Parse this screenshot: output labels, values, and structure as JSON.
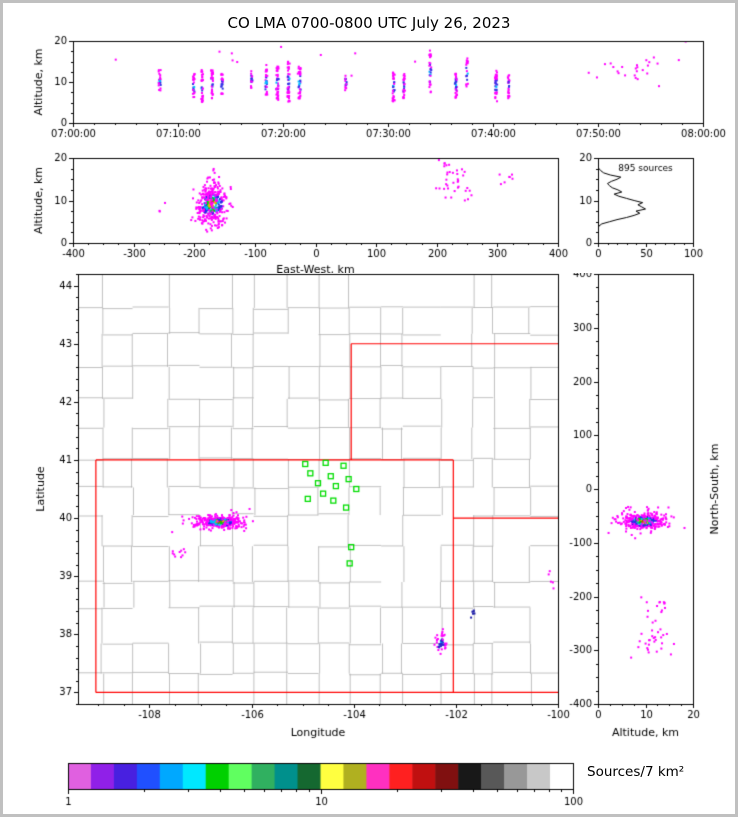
{
  "title": "CO LMA 0700-0800 UTC July 26, 2023",
  "palettes": {
    "magenta": [
      "#ff00ff"
    ],
    "burst": [
      "#ff00ff",
      "#ff00ff",
      "#3333e6",
      "#00bfff"
    ],
    "storm": [
      "#ff00ff",
      "#ff00ff",
      "#2a2ae6",
      "#00bfff",
      "#00d000",
      "#ffa500",
      "#ff2200",
      "#101010"
    ],
    "blueclump": [
      "#ff00ff",
      "#2a2ad0",
      "#2a2ad0",
      "#00aaff"
    ],
    "darkblue": [
      "#2222aa"
    ]
  },
  "map_style": {
    "county_color": "#b0b0b0",
    "border_color": "#ff0000",
    "station_color": "#00dd00"
  },
  "colorbar": {
    "label": "Sources/7 km²",
    "scale": "log",
    "range": [
      1,
      100
    ],
    "tick_values": [
      1,
      10,
      100
    ],
    "tick_labels": [
      "1",
      "10",
      "100"
    ],
    "colors": [
      "#e060e0",
      "#9020e8",
      "#4820e0",
      "#2050ff",
      "#00a8ff",
      "#00e8ff",
      "#00d000",
      "#60ff60",
      "#30b060",
      "#00908c",
      "#156830",
      "#ffff40",
      "#b0b020",
      "#ff30c0",
      "#ff2020",
      "#c01010",
      "#801010",
      "#181818",
      "#585858",
      "#989898",
      "#c8c8c8",
      "#ffffff"
    ]
  },
  "chart_data": [
    {
      "id": "time_height",
      "type": "scatter",
      "xlabel": "",
      "ylabel": "Altitude, km",
      "xlim": [
        0,
        3600
      ],
      "ylim": [
        0,
        20
      ],
      "xticks": [
        {
          "v": 0,
          "l": "07:00:00"
        },
        {
          "v": 600,
          "l": "07:10:00"
        },
        {
          "v": 1200,
          "l": "07:20:00"
        },
        {
          "v": 1800,
          "l": "07:30:00"
        },
        {
          "v": 2400,
          "l": "07:40:00"
        },
        {
          "v": 3000,
          "l": "07:50:00"
        },
        {
          "v": 3600,
          "l": "08:00:00"
        }
      ],
      "yticks": [
        {
          "v": 0,
          "l": "0"
        },
        {
          "v": 10,
          "l": "10"
        },
        {
          "v": 20,
          "l": "20"
        }
      ],
      "xminor": 120,
      "yminor": 2.5,
      "clusters": [
        {
          "kind": "vline",
          "x": 495,
          "jx": 6,
          "y0": 7,
          "y1": 13,
          "n": 22,
          "palette": "burst"
        },
        {
          "kind": "vline",
          "x": 690,
          "jx": 5,
          "y0": 6,
          "y1": 12,
          "n": 24,
          "palette": "burst"
        },
        {
          "kind": "vline",
          "x": 738,
          "jx": 5,
          "y0": 5,
          "y1": 13,
          "n": 30,
          "palette": "burst"
        },
        {
          "kind": "vline",
          "x": 795,
          "jx": 6,
          "y0": 6,
          "y1": 13,
          "n": 30,
          "palette": "burst"
        },
        {
          "kind": "vline",
          "x": 852,
          "jx": 5,
          "y0": 7,
          "y1": 12,
          "n": 22,
          "palette": "burst"
        },
        {
          "kind": "vline",
          "x": 1022,
          "jx": 5,
          "y0": 8,
          "y1": 13,
          "n": 16,
          "palette": "burst"
        },
        {
          "kind": "vline",
          "x": 1105,
          "jx": 6,
          "y0": 6,
          "y1": 13,
          "n": 28,
          "palette": "burst"
        },
        {
          "kind": "vline",
          "x": 1168,
          "jx": 6,
          "y0": 5,
          "y1": 14,
          "n": 40,
          "palette": "burst"
        },
        {
          "kind": "vline",
          "x": 1232,
          "jx": 6,
          "y0": 5,
          "y1": 15,
          "n": 44,
          "palette": "burst"
        },
        {
          "kind": "vline",
          "x": 1295,
          "jx": 6,
          "y0": 6,
          "y1": 14,
          "n": 34,
          "palette": "burst"
        },
        {
          "kind": "vline",
          "x": 1560,
          "jx": 5,
          "y0": 8,
          "y1": 12,
          "n": 14,
          "palette": "burst"
        },
        {
          "kind": "vline",
          "x": 1832,
          "jx": 6,
          "y0": 5,
          "y1": 13,
          "n": 32,
          "palette": "burst"
        },
        {
          "kind": "vline",
          "x": 1892,
          "jx": 5,
          "y0": 6,
          "y1": 12,
          "n": 26,
          "palette": "burst"
        },
        {
          "kind": "vline",
          "x": 2042,
          "jx": 6,
          "y0": 7,
          "y1": 17,
          "n": 28,
          "palette": "burst"
        },
        {
          "kind": "vline",
          "x": 2188,
          "jx": 6,
          "y0": 6,
          "y1": 13,
          "n": 32,
          "palette": "burst"
        },
        {
          "kind": "vline",
          "x": 2252,
          "jx": 5,
          "y0": 8,
          "y1": 16,
          "n": 20,
          "palette": "burst"
        },
        {
          "kind": "vline",
          "x": 2418,
          "jx": 6,
          "y0": 5,
          "y1": 13,
          "n": 36,
          "palette": "burst"
        },
        {
          "kind": "vline",
          "x": 2490,
          "jx": 5,
          "y0": 6,
          "y1": 12,
          "n": 26,
          "palette": "burst"
        },
        {
          "kind": "cloud",
          "cx": 3200,
          "cy": 13,
          "sx": 140,
          "sy": 2.2,
          "n": 26,
          "palette": "magenta"
        },
        {
          "kind": "cloud",
          "cx": 1650,
          "cy": 14.5,
          "sx": 750,
          "sy": 2.0,
          "n": 14,
          "palette": "magenta"
        }
      ]
    },
    {
      "id": "ew_height",
      "type": "scatter",
      "xlabel": "East-West, km",
      "ylabel": "Altitude, km",
      "xlim": [
        -400,
        400
      ],
      "ylim": [
        0,
        20
      ],
      "xticks": [
        {
          "v": -400,
          "l": "-400"
        },
        {
          "v": -300,
          "l": "-300"
        },
        {
          "v": -200,
          "l": "-200"
        },
        {
          "v": -100,
          "l": "-100"
        },
        {
          "v": 0,
          "l": "0"
        },
        {
          "v": 100,
          "l": "100"
        },
        {
          "v": 200,
          "l": "200"
        },
        {
          "v": 300,
          "l": "300"
        },
        {
          "v": 400,
          "l": "400"
        }
      ],
      "yticks": [
        {
          "v": 0,
          "l": "0"
        },
        {
          "v": 10,
          "l": "10"
        },
        {
          "v": 20,
          "l": "20"
        }
      ],
      "xminor": 25,
      "yminor": 2.5,
      "clusters": [
        {
          "kind": "cloud",
          "cx": -170,
          "cy": 9,
          "sx": 13,
          "sy": 2.1,
          "n": 320,
          "palette": "storm"
        },
        {
          "kind": "cloud",
          "cx": -170,
          "cy": 11.5,
          "sx": 9,
          "sy": 2.6,
          "n": 70,
          "palette": "magenta"
        },
        {
          "kind": "cloud",
          "cx": -173,
          "cy": 5.5,
          "sx": 9,
          "sy": 1.1,
          "n": 22,
          "palette": "magenta"
        },
        {
          "kind": "cloud",
          "cx": 228,
          "cy": 15,
          "sx": 16,
          "sy": 2.2,
          "n": 28,
          "palette": "magenta"
        },
        {
          "kind": "cloud",
          "cx": 208,
          "cy": 18.5,
          "sx": 8,
          "sy": 0.8,
          "n": 5,
          "palette": "magenta"
        },
        {
          "kind": "cloud",
          "cx": 312,
          "cy": 14.5,
          "sx": 10,
          "sy": 1.2,
          "n": 7,
          "palette": "magenta"
        },
        {
          "kind": "cloud",
          "cx": 255,
          "cy": 11,
          "sx": 6,
          "sy": 1.0,
          "n": 4,
          "palette": "magenta"
        },
        {
          "kind": "cloud",
          "cx": -258,
          "cy": 9,
          "sx": 3,
          "sy": 0.8,
          "n": 3,
          "palette": "magenta"
        }
      ]
    },
    {
      "id": "alt_histogram",
      "type": "line",
      "annotation": "895 sources",
      "xlabel": "",
      "ylabel": "",
      "xlim": [
        0,
        100
      ],
      "ylim": [
        0,
        20
      ],
      "xticks": [
        {
          "v": 0,
          "l": "0"
        },
        {
          "v": 50,
          "l": "50"
        },
        {
          "v": 100,
          "l": "100"
        }
      ],
      "yticks": [
        {
          "v": 0,
          "l": "0"
        },
        {
          "v": 10,
          "l": "10"
        },
        {
          "v": 20,
          "l": "20"
        }
      ],
      "xminor": 10,
      "yminor": 2.5,
      "profile": [
        [
          3.5,
          0
        ],
        [
          4,
          1
        ],
        [
          4.5,
          4
        ],
        [
          5,
          12
        ],
        [
          5.5,
          20
        ],
        [
          6,
          30
        ],
        [
          6.5,
          38
        ],
        [
          7,
          44
        ],
        [
          7.5,
          40
        ],
        [
          8,
          50
        ],
        [
          8.5,
          46
        ],
        [
          9,
          42
        ],
        [
          9.5,
          47
        ],
        [
          10,
          38
        ],
        [
          10.5,
          30
        ],
        [
          11,
          22
        ],
        [
          11.5,
          17
        ],
        [
          12,
          25
        ],
        [
          12.5,
          21
        ],
        [
          13,
          15
        ],
        [
          13.5,
          12
        ],
        [
          14,
          10
        ],
        [
          14.5,
          14
        ],
        [
          15,
          20
        ],
        [
          15.5,
          24
        ],
        [
          16,
          13
        ],
        [
          16.5,
          6
        ],
        [
          17,
          3
        ],
        [
          17.5,
          1
        ],
        [
          18,
          0
        ]
      ]
    },
    {
      "id": "plan_view",
      "type": "map_scatter",
      "xlabel": "Longitude",
      "ylabel": "Latitude",
      "xlim": [
        -109.4,
        -100.0
      ],
      "ylim": [
        36.8,
        44.2
      ],
      "xticks": [
        {
          "v": -108,
          "l": "-108"
        },
        {
          "v": -106,
          "l": "-106"
        },
        {
          "v": -104,
          "l": "-104"
        },
        {
          "v": -102,
          "l": "-102"
        },
        {
          "v": -100,
          "l": "-100"
        }
      ],
      "yticks": [
        {
          "v": 37,
          "l": "37"
        },
        {
          "v": 38,
          "l": "38"
        },
        {
          "v": 39,
          "l": "39"
        },
        {
          "v": 40,
          "l": "40"
        },
        {
          "v": 41,
          "l": "41"
        },
        {
          "v": 42,
          "l": "42"
        },
        {
          "v": 43,
          "l": "43"
        },
        {
          "v": 44,
          "l": "44"
        }
      ],
      "xminor": 0.5,
      "yminor": 0.2,
      "state_borders": [
        [
          [
            -109.05,
            37
          ],
          [
            -100,
            37
          ]
        ],
        [
          [
            -109.05,
            41
          ],
          [
            -102.05,
            41
          ]
        ],
        [
          [
            -109.05,
            37
          ],
          [
            -109.05,
            41
          ]
        ],
        [
          [
            -102.05,
            37
          ],
          [
            -102.05,
            41
          ]
        ],
        [
          [
            -104.05,
            41
          ],
          [
            -104.05,
            43
          ]
        ],
        [
          [
            -104.05,
            43
          ],
          [
            -100,
            43
          ]
        ],
        [
          [
            -102.05,
            40
          ],
          [
            -100,
            40
          ]
        ]
      ],
      "stations": [
        [
          -104.95,
          40.93
        ],
        [
          -104.55,
          40.95
        ],
        [
          -104.2,
          40.9
        ],
        [
          -104.85,
          40.77
        ],
        [
          -104.45,
          40.72
        ],
        [
          -104.1,
          40.67
        ],
        [
          -104.7,
          40.6
        ],
        [
          -104.35,
          40.55
        ],
        [
          -103.95,
          40.5
        ],
        [
          -104.6,
          40.42
        ],
        [
          -104.9,
          40.33
        ],
        [
          -104.4,
          40.3
        ],
        [
          -104.15,
          40.18
        ],
        [
          -104.05,
          39.5
        ],
        [
          -104.08,
          39.22
        ]
      ],
      "clusters": [
        {
          "kind": "cloud",
          "cx": -106.62,
          "cy": 39.93,
          "sx": 0.2,
          "sy": 0.05,
          "n": 320,
          "palette": "storm"
        },
        {
          "kind": "cloud",
          "cx": -106.6,
          "cy": 39.93,
          "sx": 0.33,
          "sy": 0.1,
          "n": 70,
          "palette": "magenta"
        },
        {
          "kind": "cloud",
          "cx": -107.4,
          "cy": 39.4,
          "sx": 0.12,
          "sy": 0.06,
          "n": 10,
          "palette": "magenta"
        },
        {
          "kind": "cloud",
          "cx": -102.3,
          "cy": 37.85,
          "sx": 0.05,
          "sy": 0.09,
          "n": 45,
          "palette": "blueclump"
        },
        {
          "kind": "cloud",
          "cx": -101.68,
          "cy": 38.35,
          "sx": 0.035,
          "sy": 0.035,
          "n": 6,
          "palette": "darkblue"
        },
        {
          "kind": "cloud",
          "cx": -100.12,
          "cy": 38.9,
          "sx": 0.04,
          "sy": 0.07,
          "n": 5,
          "palette": "magenta"
        }
      ]
    },
    {
      "id": "ns_height",
      "type": "scatter",
      "xlabel": "Altitude, km",
      "ylabel": "North-South, km",
      "ylabel_side": "right",
      "xlim": [
        0,
        20
      ],
      "ylim": [
        -400,
        400
      ],
      "xticks": [
        {
          "v": 0,
          "l": "0"
        },
        {
          "v": 10,
          "l": "10"
        },
        {
          "v": 20,
          "l": "20"
        }
      ],
      "yticks": [
        {
          "v": 400,
          "l": "400"
        },
        {
          "v": 300,
          "l": "300"
        },
        {
          "v": 200,
          "l": "200"
        },
        {
          "v": 100,
          "l": "100"
        },
        {
          "v": 0,
          "l": "0"
        },
        {
          "v": -100,
          "l": "-100"
        },
        {
          "v": -200,
          "l": "-200"
        },
        {
          "v": -300,
          "l": "-300"
        },
        {
          "v": -400,
          "l": "-400"
        }
      ],
      "xminor": 2.5,
      "yminor": 25,
      "clusters": [
        {
          "kind": "cloud",
          "cx": 9.5,
          "cy": -60,
          "sx": 2.2,
          "sy": 7,
          "n": 320,
          "palette": "storm"
        },
        {
          "kind": "cloud",
          "cx": 10,
          "cy": -60,
          "sx": 3.6,
          "sy": 14,
          "n": 70,
          "palette": "magenta"
        },
        {
          "kind": "cloud",
          "cx": 12,
          "cy": -212,
          "sx": 1.8,
          "sy": 9,
          "n": 10,
          "palette": "magenta"
        },
        {
          "kind": "cloud",
          "cx": 12.5,
          "cy": -268,
          "sx": 2.4,
          "sy": 18,
          "n": 24,
          "palette": "magenta"
        },
        {
          "kind": "cloud",
          "cx": 11.5,
          "cy": -302,
          "sx": 1.8,
          "sy": 8,
          "n": 8,
          "palette": "magenta"
        }
      ]
    }
  ]
}
